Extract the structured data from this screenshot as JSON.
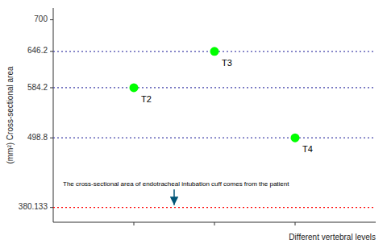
{
  "chart_data": {
    "type": "scatter",
    "title": "",
    "xlabel": "Different vertebral levels",
    "ylabel": "(mm²) Cross-sectional area",
    "x": [
      1.5,
      2.5,
      3.5
    ],
    "values": [
      584.2,
      646.2,
      498.8
    ],
    "labels": [
      "T2",
      "T3",
      "T4"
    ],
    "color": "#00ff00",
    "xlim": [
      0.5,
      4.5
    ],
    "xticks": [
      1.5,
      2.5,
      3.5
    ],
    "ylim": [
      355,
      720
    ],
    "yticks": [
      700,
      646.2,
      584.2,
      498.8,
      380.133
    ],
    "tick_labels": "y",
    "grid": false,
    "reference_lines": [
      {
        "y": 646.2,
        "color": "#4444aa"
      },
      {
        "y": 584.2,
        "color": "#4444aa"
      },
      {
        "y": 498.8,
        "color": "#4444aa"
      },
      {
        "y": 380.133,
        "color": "#ff0000"
      }
    ],
    "annotations": [
      {
        "text": "The cross-sectional area of endotracheal intubation cuff comes from the patient",
        "x": 0.62,
        "y": 415,
        "arrow_x": 2.0,
        "arrow_y": 380.133,
        "arrow_color": "#005577"
      }
    ]
  }
}
